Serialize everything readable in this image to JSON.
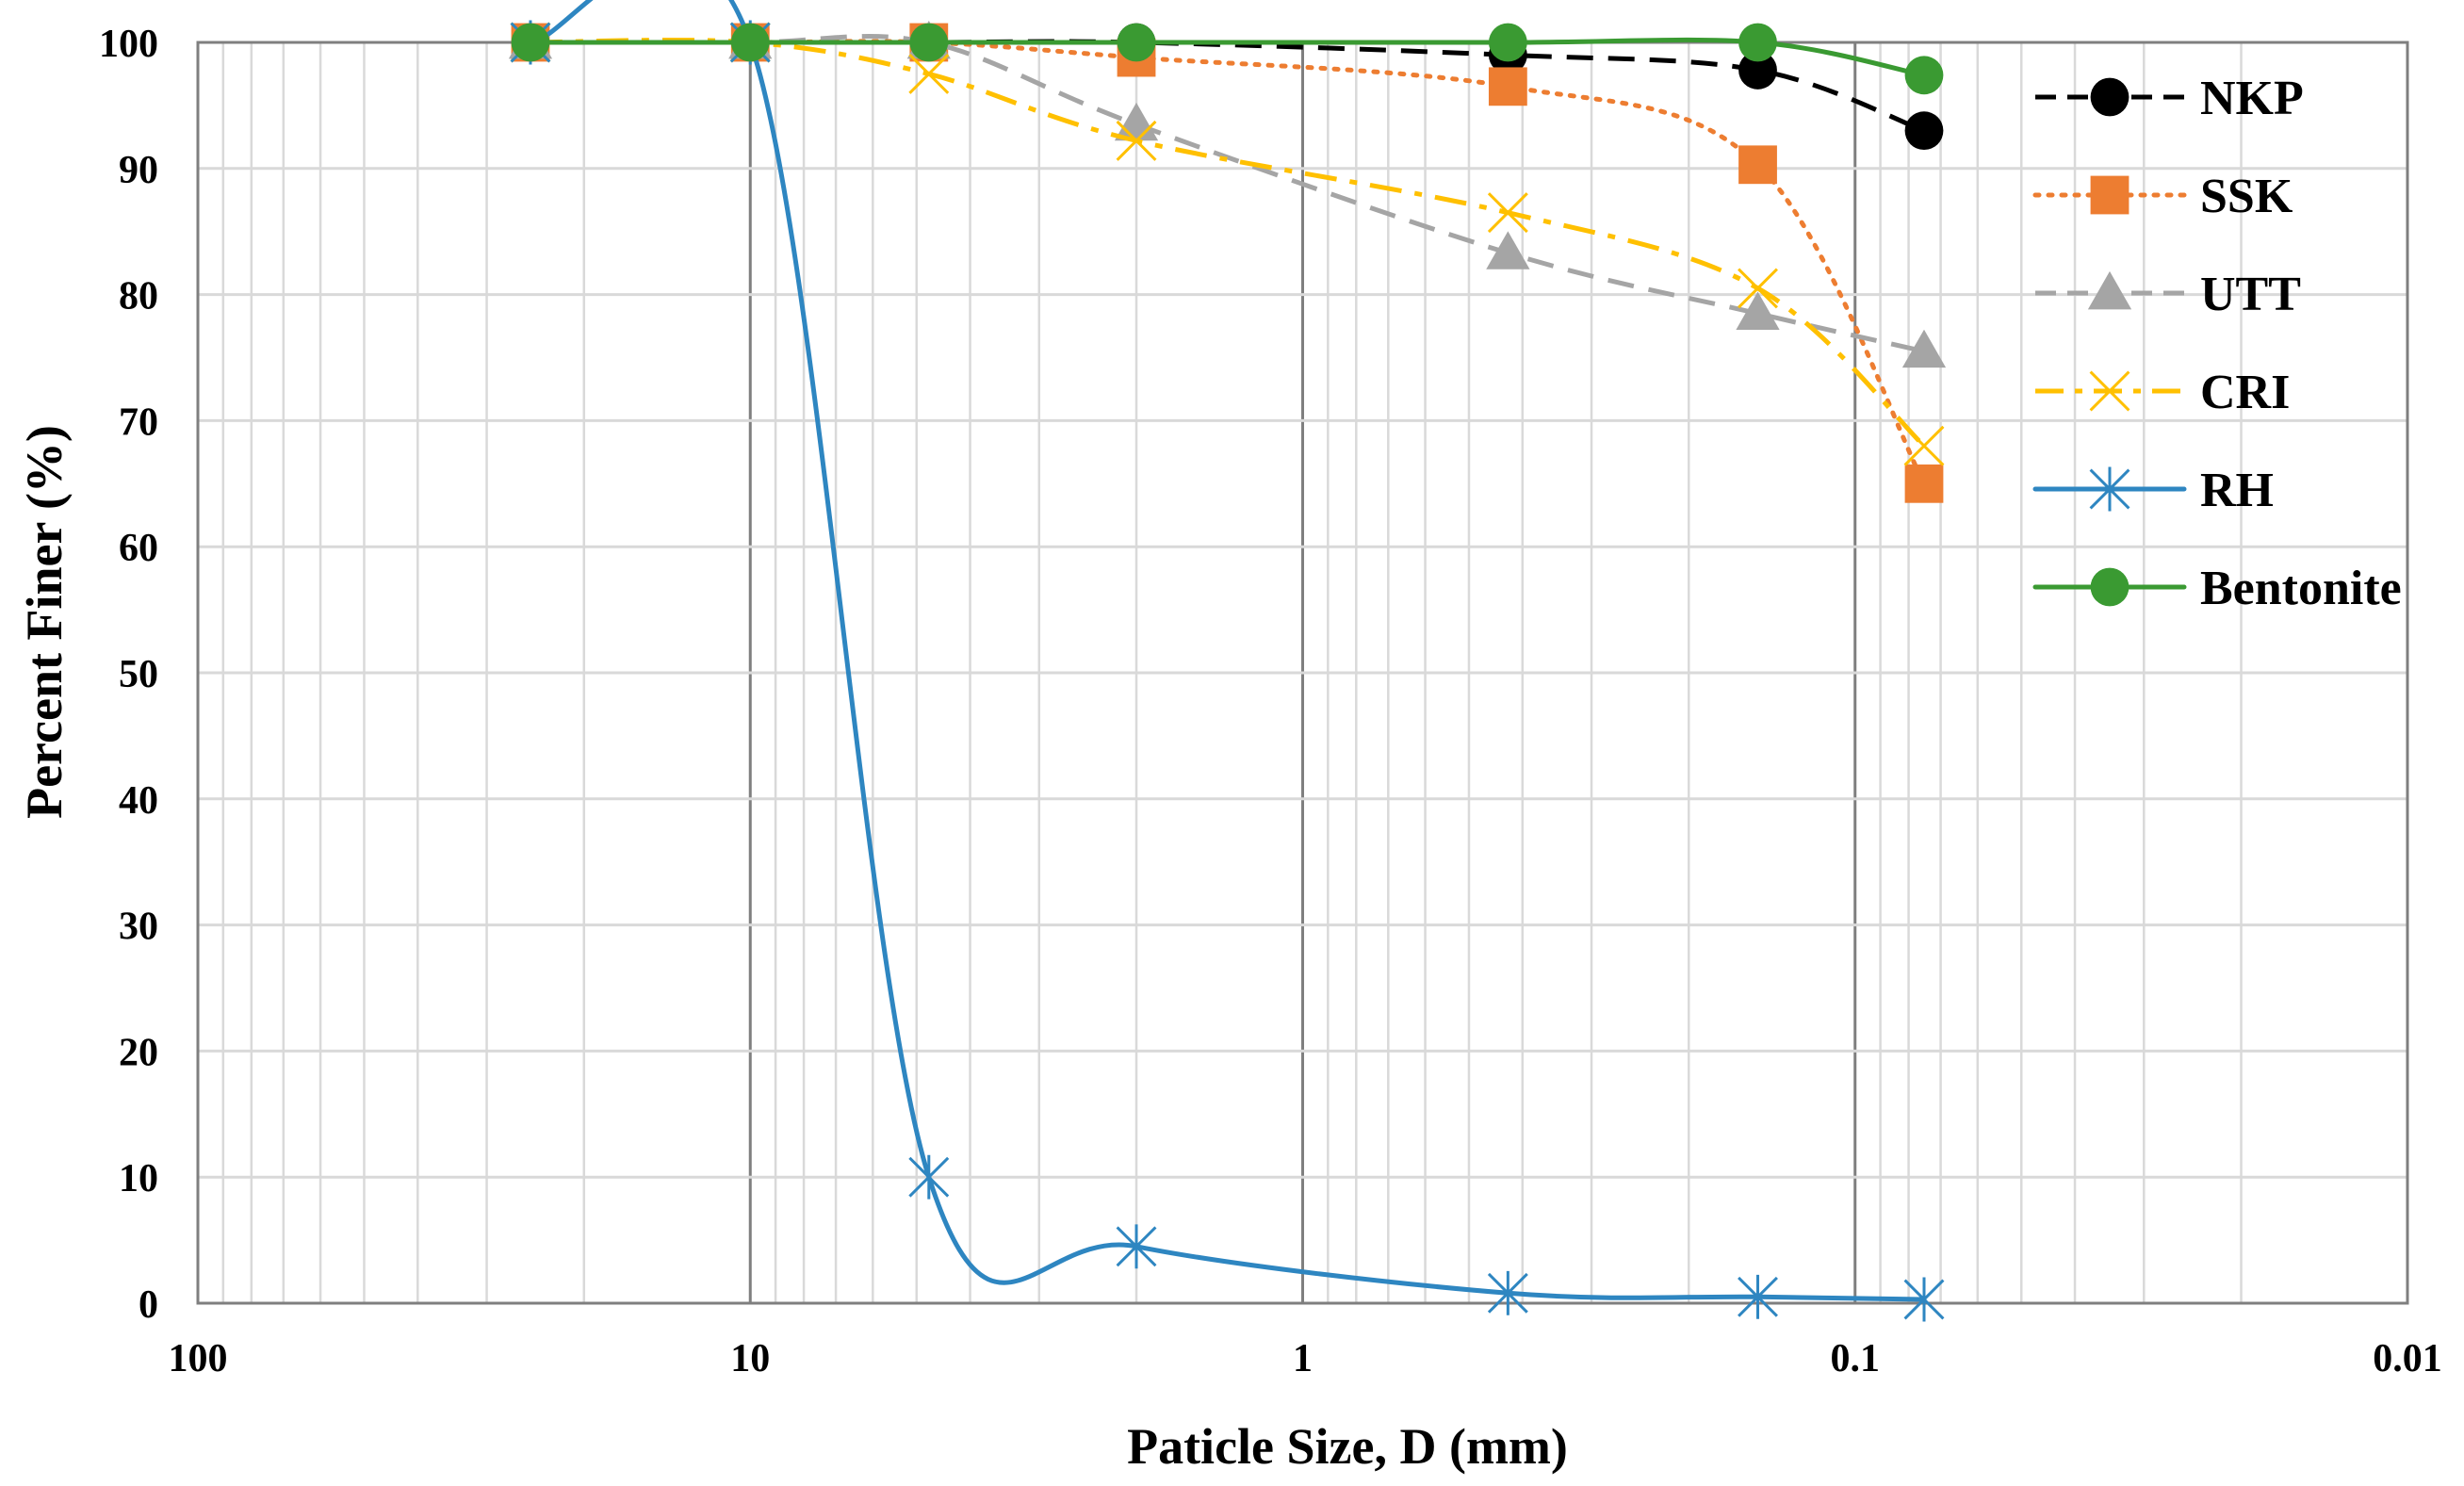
{
  "chart_data": {
    "type": "line",
    "title": "",
    "xlabel": "Paticle Size, D (mm)",
    "ylabel": "Percent Finer (%)",
    "x_scale": "log",
    "x_reversed": true,
    "xlim": [
      100,
      0.01
    ],
    "ylim": [
      0,
      100
    ],
    "x_ticks": [
      100,
      10,
      1,
      0.1,
      0.01
    ],
    "x_tick_labels": [
      "100",
      "10",
      "1",
      "0.1",
      "0.01"
    ],
    "y_ticks": [
      0,
      10,
      20,
      30,
      40,
      50,
      60,
      70,
      80,
      90,
      100
    ],
    "y_tick_labels": [
      "0",
      "10",
      "20",
      "30",
      "40",
      "50",
      "60",
      "70",
      "80",
      "90",
      "100"
    ],
    "grid": true,
    "legend_position": "right",
    "series": [
      {
        "name": "NKP",
        "color": "#000000",
        "dash": "dash",
        "marker": "circle",
        "x": [
          25,
          10,
          4.75,
          2,
          0.425,
          0.15,
          0.075
        ],
        "y": [
          100,
          100,
          100,
          100,
          99,
          97.8,
          93
        ]
      },
      {
        "name": "SSK",
        "color": "#ED7D31",
        "dash": "dot",
        "marker": "square",
        "x": [
          25,
          10,
          4.75,
          2,
          0.425,
          0.15,
          0.075
        ],
        "y": [
          100,
          100,
          100,
          98.8,
          96.5,
          90.3,
          65
        ]
      },
      {
        "name": "UTT",
        "color": "#A5A5A5",
        "dash": "dash",
        "marker": "triangle",
        "x": [
          25,
          10,
          4.75,
          2,
          0.425,
          0.15,
          0.075
        ],
        "y": [
          100,
          100,
          100,
          93.5,
          83.3,
          78.5,
          75.5
        ]
      },
      {
        "name": "CRI",
        "color": "#FFC000",
        "dash": "dashdot",
        "marker": "x",
        "x": [
          25,
          10,
          4.75,
          2,
          0.425,
          0.15,
          0.075
        ],
        "y": [
          100,
          100,
          97.5,
          92.2,
          86.5,
          80.5,
          68
        ]
      },
      {
        "name": "RH",
        "color": "#2E86C1",
        "dash": "solid",
        "marker": "asterisk",
        "x": [
          25,
          10,
          4.75,
          2,
          0.425,
          0.15,
          0.075
        ],
        "y": [
          100,
          100,
          10,
          4.5,
          0.8,
          0.5,
          0.3
        ]
      },
      {
        "name": "Bentonite",
        "color": "#3A9A32",
        "dash": "solid",
        "marker": "circle",
        "x": [
          25,
          10,
          4.75,
          2,
          0.425,
          0.15,
          0.075
        ],
        "y": [
          100,
          100,
          100,
          100,
          100,
          100,
          97.4
        ]
      }
    ]
  }
}
